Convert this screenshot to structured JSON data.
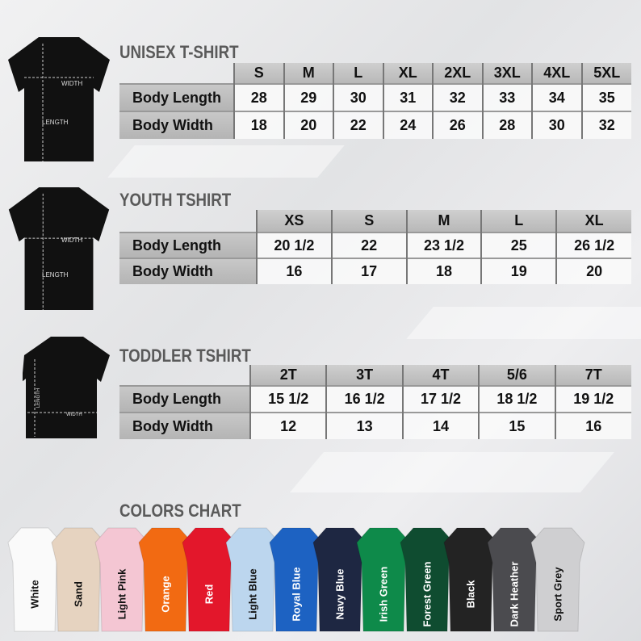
{
  "unisex": {
    "title": "UNISEX T-SHIRT",
    "diagram": {
      "width": "WIDTH",
      "length": "LENGTH"
    },
    "sizes": [
      "S",
      "M",
      "L",
      "XL",
      "2XL",
      "3XL",
      "4XL",
      "5XL"
    ],
    "rows": [
      {
        "label": "Body Length",
        "values": [
          "28",
          "29",
          "30",
          "31",
          "32",
          "33",
          "34",
          "35"
        ]
      },
      {
        "label": "Body Width",
        "values": [
          "18",
          "20",
          "22",
          "24",
          "26",
          "28",
          "30",
          "32"
        ]
      }
    ]
  },
  "youth": {
    "title": "YOUTH TSHIRT",
    "diagram": {
      "width": "WIDTH",
      "length": "LENGTH"
    },
    "sizes": [
      "XS",
      "S",
      "M",
      "L",
      "XL"
    ],
    "rows": [
      {
        "label": "Body Length",
        "values": [
          "20 1/2",
          "22",
          "23 1/2",
          "25",
          "26 1/2"
        ]
      },
      {
        "label": "Body Width",
        "values": [
          "16",
          "17",
          "18",
          "19",
          "20"
        ]
      }
    ]
  },
  "toddler": {
    "title": "TODDLER TSHIRT",
    "diagram": {
      "width": "WIDTH",
      "length": "LENGTH"
    },
    "sizes": [
      "2T",
      "3T",
      "4T",
      "5/6",
      "7T"
    ],
    "rows": [
      {
        "label": "Body Length",
        "values": [
          "15 1/2",
          "16 1/2",
          "17 1/2",
          "18 1/2",
          "19 1/2"
        ]
      },
      {
        "label": "Body Width",
        "values": [
          "12",
          "13",
          "14",
          "15",
          "16"
        ]
      }
    ]
  },
  "colors": {
    "title": "COLORS CHART",
    "items": [
      {
        "name": "White",
        "color": "#fafafa",
        "text": "#111"
      },
      {
        "name": "Sand",
        "color": "#e6d3c0",
        "text": "#111"
      },
      {
        "name": "Light Pink",
        "color": "#f4c6d3",
        "text": "#111"
      },
      {
        "name": "Orange",
        "color": "#f26a12",
        "text": "#fff"
      },
      {
        "name": "Red",
        "color": "#e3172b",
        "text": "#fff"
      },
      {
        "name": "Light Blue",
        "color": "#bcd6ee",
        "text": "#111"
      },
      {
        "name": "Royal Blue",
        "color": "#1d62c2",
        "text": "#fff"
      },
      {
        "name": "Navy Blue",
        "color": "#1e2742",
        "text": "#fff"
      },
      {
        "name": "Irish Green",
        "color": "#0e8a4a",
        "text": "#fff"
      },
      {
        "name": "Forest Green",
        "color": "#0f4c30",
        "text": "#fff"
      },
      {
        "name": "Black",
        "color": "#232323",
        "text": "#fff"
      },
      {
        "name": "Dark Heather",
        "color": "#4b4b4f",
        "text": "#fff"
      },
      {
        "name": "Sport Grey",
        "color": "#cfcfd1",
        "text": "#111"
      }
    ]
  }
}
